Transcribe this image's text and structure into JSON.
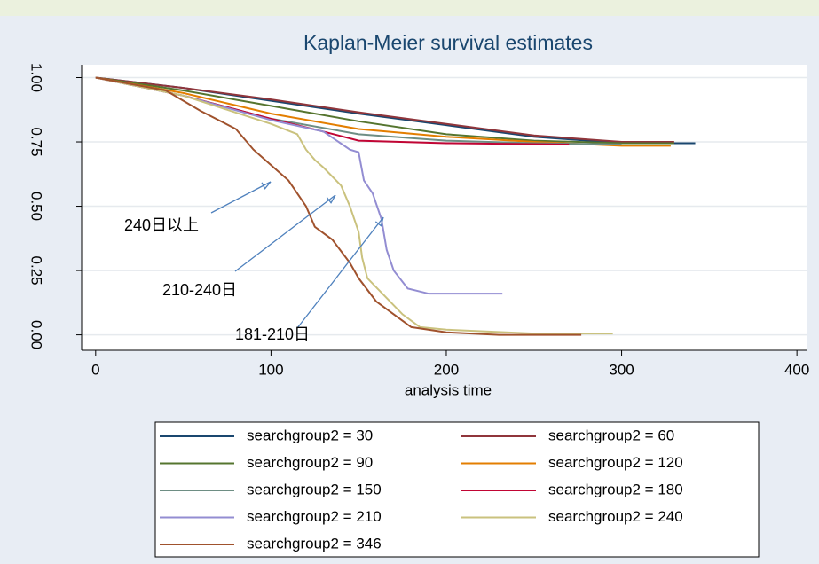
{
  "chart_data": {
    "type": "line",
    "title": "Kaplan-Meier survival estimates",
    "x_label": "analysis time",
    "xlim": [
      -8,
      406
    ],
    "ylim": [
      -0.06,
      1.05
    ],
    "xticks": [
      0,
      100,
      200,
      300,
      400
    ],
    "yticks": [
      {
        "value": 0,
        "label": "0.00"
      },
      {
        "value": 0.25,
        "label": "0.25"
      },
      {
        "value": 0.5,
        "label": "0.50"
      },
      {
        "value": 0.75,
        "label": "0.75"
      },
      {
        "value": 1,
        "label": "1.00"
      }
    ],
    "grid": true,
    "annotations": [
      "240日以上",
      "210-240日",
      "181-210日"
    ],
    "series": [
      {
        "name": "searchgroup2 = 30",
        "color": "#1a476f",
        "x": [
          0,
          50,
          100,
          150,
          200,
          250,
          300,
          342
        ],
        "values": [
          1,
          0.96,
          0.91,
          0.86,
          0.815,
          0.77,
          0.745,
          0.745
        ]
      },
      {
        "name": "searchgroup2 = 60",
        "color": "#90353b",
        "x": [
          0,
          50,
          100,
          150,
          200,
          250,
          300,
          330
        ],
        "values": [
          1,
          0.96,
          0.915,
          0.865,
          0.82,
          0.775,
          0.75,
          0.75
        ]
      },
      {
        "name": "searchgroup2 = 90",
        "color": "#55752f",
        "x": [
          0,
          50,
          100,
          150,
          200,
          250,
          300,
          330
        ],
        "values": [
          1,
          0.95,
          0.89,
          0.83,
          0.78,
          0.755,
          0.745,
          0.745
        ]
      },
      {
        "name": "searchgroup2 = 120",
        "color": "#e37e00",
        "x": [
          0,
          50,
          100,
          150,
          200,
          250,
          300,
          328
        ],
        "values": [
          1,
          0.94,
          0.86,
          0.8,
          0.77,
          0.75,
          0.735,
          0.735
        ]
      },
      {
        "name": "searchgroup2 = 150",
        "color": "#6e8e84",
        "x": [
          0,
          50,
          100,
          150,
          200,
          250,
          300
        ],
        "values": [
          1,
          0.93,
          0.84,
          0.78,
          0.755,
          0.745,
          0.74
        ]
      },
      {
        "name": "searchgroup2 = 180",
        "color": "#c10534",
        "x": [
          0,
          50,
          100,
          130,
          150,
          200,
          270
        ],
        "values": [
          1,
          0.93,
          0.84,
          0.79,
          0.755,
          0.745,
          0.74
        ]
      },
      {
        "name": "searchgroup2 = 210",
        "color": "#938dd2",
        "x": [
          0,
          50,
          100,
          130,
          145,
          150,
          153,
          158,
          163,
          166,
          170,
          178,
          190,
          232
        ],
        "values": [
          1,
          0.93,
          0.835,
          0.79,
          0.72,
          0.71,
          0.6,
          0.55,
          0.45,
          0.33,
          0.25,
          0.18,
          0.16,
          0.16
        ]
      },
      {
        "name": "searchgroup2 = 240",
        "color": "#cac27e",
        "x": [
          0,
          50,
          100,
          115,
          120,
          125,
          130,
          140,
          145,
          150,
          152,
          155,
          165,
          175,
          185,
          200,
          250,
          295
        ],
        "values": [
          1,
          0.93,
          0.82,
          0.78,
          0.72,
          0.68,
          0.65,
          0.58,
          0.5,
          0.4,
          0.3,
          0.22,
          0.15,
          0.08,
          0.03,
          0.02,
          0.005,
          0.005
        ]
      },
      {
        "name": "searchgroup2 = 346",
        "color": "#a0522d",
        "x": [
          0,
          40,
          60,
          80,
          90,
          100,
          110,
          120,
          125,
          135,
          145,
          150,
          160,
          170,
          180,
          200,
          230,
          277
        ],
        "values": [
          1,
          0.95,
          0.87,
          0.8,
          0.72,
          0.66,
          0.6,
          0.5,
          0.42,
          0.37,
          0.28,
          0.22,
          0.13,
          0.08,
          0.03,
          0.01,
          0,
          0
        ]
      }
    ]
  }
}
